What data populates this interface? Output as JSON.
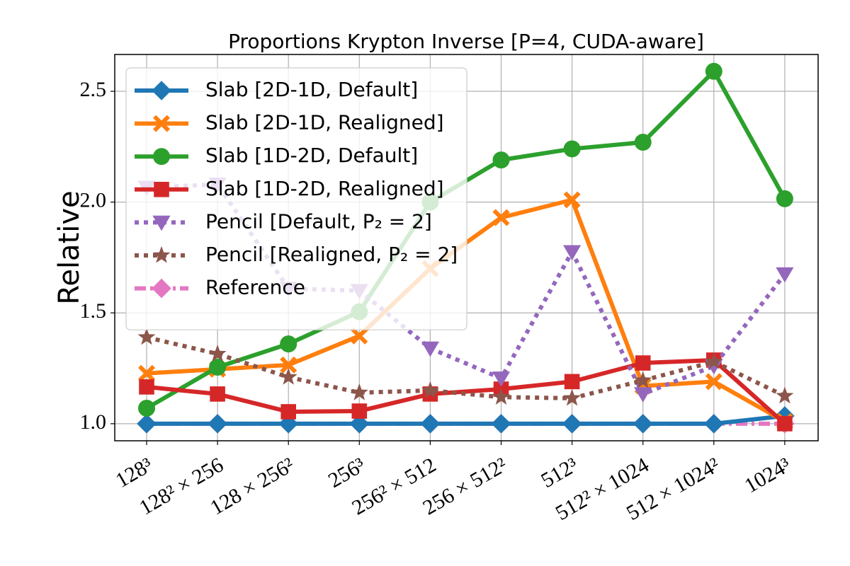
{
  "chart_data": {
    "type": "line",
    "title": "Proportions Krypton Inverse [P=4, CUDA-aware]",
    "y_label": "Relative",
    "categories": [
      "128³",
      "128² × 256",
      "128 × 256²",
      "256³",
      "256² × 512",
      "256 × 512²",
      "512³",
      "512² × 1024",
      "512 × 1024²",
      "1024³"
    ],
    "ylim": [
      0.923,
      2.666
    ],
    "yticks": [
      {
        "value": 1.0,
        "label": "1.0"
      },
      {
        "value": 1.5,
        "label": "1.5"
      },
      {
        "value": 2.0,
        "label": "2.0"
      },
      {
        "value": 2.5,
        "label": "2.5"
      }
    ],
    "grid": true,
    "legend": "upper left",
    "series": [
      {
        "name": "Slab [2D-1D, Default]",
        "color": "#1f77b4",
        "marker": "diamond",
        "dash": "solid",
        "values": [
          1.0,
          1.0,
          1.0,
          1.0,
          1.0,
          1.0,
          1.0,
          1.0,
          1.0,
          1.035
        ]
      },
      {
        "name": "Slab [2D-1D, Realigned]",
        "color": "#ff7f0e",
        "marker": "x",
        "dash": "solid",
        "values": [
          1.227,
          1.246,
          1.265,
          1.396,
          1.7,
          1.93,
          2.01,
          1.17,
          1.19,
          1.01
        ]
      },
      {
        "name": "Slab [1D-2D, Default]",
        "color": "#2ca02c",
        "marker": "circle",
        "dash": "solid",
        "values": [
          1.07,
          1.255,
          1.36,
          1.505,
          2.0,
          2.19,
          2.24,
          2.27,
          2.59,
          2.015
        ]
      },
      {
        "name": "Slab [1D-2D, Realigned]",
        "color": "#d62728",
        "marker": "square",
        "dash": "solid",
        "values": [
          1.166,
          1.134,
          1.054,
          1.057,
          1.134,
          1.156,
          1.19,
          1.274,
          1.287,
          1.0
        ]
      },
      {
        "name": "Pencil [Default, P₂ = 2]",
        "color": "#9467bd",
        "marker": "triangle-down",
        "dash": "dotted",
        "values": [
          2.066,
          2.08,
          1.61,
          1.6,
          1.34,
          1.205,
          1.775,
          1.134,
          1.26,
          1.675
        ]
      },
      {
        "name": "Pencil [Realigned, P₂ = 2]",
        "color": "#8c564b",
        "marker": "star",
        "dash": "dotted",
        "values": [
          1.39,
          1.315,
          1.21,
          1.14,
          1.15,
          1.12,
          1.115,
          1.195,
          1.28,
          1.125
        ]
      },
      {
        "name": "Reference",
        "color": "#e377c2",
        "marker": "diamond",
        "dash": "dashdot",
        "values": [
          1.0,
          1.0,
          1.0,
          1.0,
          1.0,
          1.0,
          1.0,
          1.0,
          1.0,
          1.0
        ]
      }
    ]
  }
}
